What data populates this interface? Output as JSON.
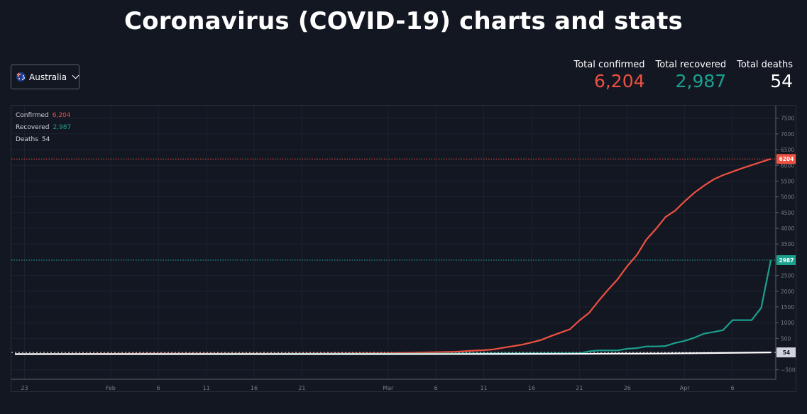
{
  "header": {
    "title": "Coronavirus (COVID-19) charts and stats"
  },
  "country_selector": {
    "value": "Australia"
  },
  "stats": [
    {
      "label": "Total confirmed",
      "value": "6,204",
      "color": "#ef5041"
    },
    {
      "label": "Total recovered",
      "value": "2,987",
      "color": "#1ba08e"
    },
    {
      "label": "Total deaths",
      "value": "54",
      "color": "#ffffff"
    }
  ],
  "chart_data": {
    "type": "line",
    "ylim": [
      -800,
      7900
    ],
    "y_ticks": [
      -500,
      500,
      1000,
      1500,
      2000,
      2500,
      3000,
      3500,
      4000,
      4500,
      5000,
      5500,
      6000,
      6500,
      7000,
      7500
    ],
    "x_start": "2020-01-22",
    "x_end": "2020-04-10",
    "x_ticks": [
      {
        "date": "2020-01-23",
        "label": "23"
      },
      {
        "date": "2020-02-01",
        "label": "Feb"
      },
      {
        "date": "2020-02-06",
        "label": "6"
      },
      {
        "date": "2020-02-11",
        "label": "11"
      },
      {
        "date": "2020-02-16",
        "label": "16"
      },
      {
        "date": "2020-02-21",
        "label": "21"
      },
      {
        "date": "2020-03-01",
        "label": "Mar"
      },
      {
        "date": "2020-03-06",
        "label": "6"
      },
      {
        "date": "2020-03-11",
        "label": "11"
      },
      {
        "date": "2020-03-16",
        "label": "16"
      },
      {
        "date": "2020-03-21",
        "label": "21"
      },
      {
        "date": "2020-03-26",
        "label": "26"
      },
      {
        "date": "2020-04-01",
        "label": "Apr"
      },
      {
        "date": "2020-04-06",
        "label": "6"
      }
    ],
    "series": [
      {
        "name": "Confirmed",
        "legend_value": "6,204",
        "last_value": 6204,
        "color": "#ef5041",
        "points": [
          [
            "2020-01-22",
            0
          ],
          [
            "2020-02-05",
            15
          ],
          [
            "2020-02-20",
            15
          ],
          [
            "2020-03-01",
            27
          ],
          [
            "2020-03-05",
            55
          ],
          [
            "2020-03-08",
            75
          ],
          [
            "2020-03-10",
            110
          ],
          [
            "2020-03-11",
            125
          ],
          [
            "2020-03-12",
            150
          ],
          [
            "2020-03-13",
            200
          ],
          [
            "2020-03-14",
            250
          ],
          [
            "2020-03-15",
            300
          ],
          [
            "2020-03-16",
            370
          ],
          [
            "2020-03-17",
            450
          ],
          [
            "2020-03-18",
            570
          ],
          [
            "2020-03-19",
            680
          ],
          [
            "2020-03-20",
            790
          ],
          [
            "2020-03-21",
            1070
          ],
          [
            "2020-03-22",
            1310
          ],
          [
            "2020-03-23",
            1690
          ],
          [
            "2020-03-24",
            2050
          ],
          [
            "2020-03-25",
            2380
          ],
          [
            "2020-03-26",
            2800
          ],
          [
            "2020-03-27",
            3150
          ],
          [
            "2020-03-28",
            3640
          ],
          [
            "2020-03-29",
            3980
          ],
          [
            "2020-03-30",
            4360
          ],
          [
            "2020-03-31",
            4560
          ],
          [
            "2020-04-01",
            4860
          ],
          [
            "2020-04-02",
            5130
          ],
          [
            "2020-04-03",
            5350
          ],
          [
            "2020-04-04",
            5550
          ],
          [
            "2020-04-05",
            5690
          ],
          [
            "2020-04-06",
            5800
          ],
          [
            "2020-04-07",
            5910
          ],
          [
            "2020-04-08",
            6010
          ],
          [
            "2020-04-09",
            6110
          ],
          [
            "2020-04-10",
            6204
          ]
        ]
      },
      {
        "name": "Recovered",
        "legend_value": "2,987",
        "last_value": 2987,
        "color": "#1ba08e",
        "points": [
          [
            "2020-01-22",
            0
          ],
          [
            "2020-03-01",
            10
          ],
          [
            "2020-03-10",
            21
          ],
          [
            "2020-03-21",
            26
          ],
          [
            "2020-03-22",
            88
          ],
          [
            "2020-03-23",
            118
          ],
          [
            "2020-03-24",
            118
          ],
          [
            "2020-03-25",
            118
          ],
          [
            "2020-03-26",
            170
          ],
          [
            "2020-03-27",
            190
          ],
          [
            "2020-03-28",
            244
          ],
          [
            "2020-03-29",
            244
          ],
          [
            "2020-03-30",
            257
          ],
          [
            "2020-03-31",
            355
          ],
          [
            "2020-04-01",
            422
          ],
          [
            "2020-04-02",
            520
          ],
          [
            "2020-04-03",
            649
          ],
          [
            "2020-04-04",
            701
          ],
          [
            "2020-04-05",
            761
          ],
          [
            "2020-04-06",
            1080
          ],
          [
            "2020-04-07",
            1080
          ],
          [
            "2020-04-08",
            1080
          ],
          [
            "2020-04-09",
            1472
          ],
          [
            "2020-04-10",
            2987
          ]
        ]
      },
      {
        "name": "Deaths",
        "legend_value": "54",
        "last_value": 54,
        "color": "#ffffff",
        "axis_label_bg": "#d1d4dc",
        "points": [
          [
            "2020-01-22",
            0
          ],
          [
            "2020-03-01",
            1
          ],
          [
            "2020-03-10",
            3
          ],
          [
            "2020-03-20",
            7
          ],
          [
            "2020-03-25",
            13
          ],
          [
            "2020-03-30",
            19
          ],
          [
            "2020-04-04",
            34
          ],
          [
            "2020-04-10",
            54
          ]
        ]
      }
    ]
  }
}
